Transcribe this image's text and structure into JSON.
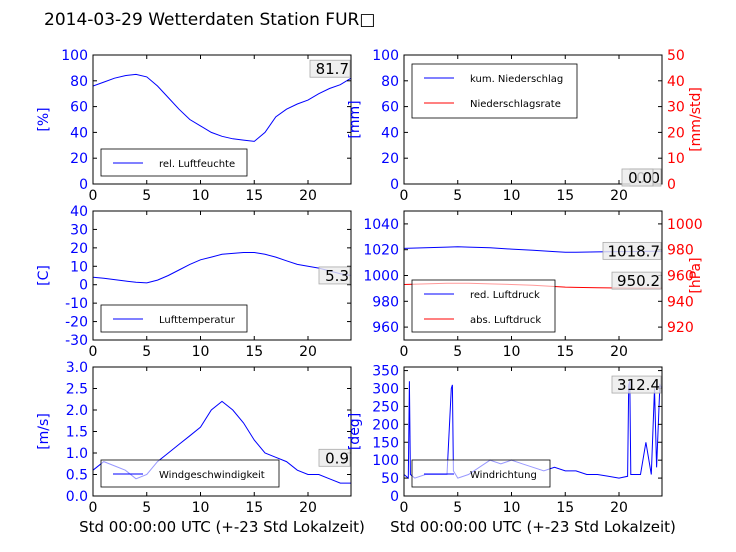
{
  "title": "2014-03-29 Wetterdaten Station FUR□",
  "common_xlabel": "Std 00:00:00 UTC (+-23 Std Lokalzeit)",
  "colors": {
    "blue": "#0000ff",
    "red": "#ff0000",
    "light_blue": "#8888ff",
    "black": "#000000"
  },
  "chart_data": [
    {
      "type": "line",
      "ylabel": "[%]",
      "xlim": [
        0,
        24
      ],
      "ylim": [
        0,
        100
      ],
      "xticks": [
        0,
        5,
        10,
        15,
        20
      ],
      "yticks": [
        0,
        20,
        40,
        60,
        80,
        100
      ],
      "annotation": "81.7",
      "legend_position": "lower-left",
      "series": [
        {
          "name": "rel. Luftfeuchte",
          "color": "#0000ff",
          "x": [
            0,
            1,
            2,
            3,
            4,
            5,
            6,
            7,
            8,
            9,
            10,
            11,
            12,
            13,
            14,
            15,
            16,
            17,
            18,
            19,
            20,
            21,
            22,
            23,
            24
          ],
          "y": [
            76,
            79,
            82,
            84,
            85,
            83,
            76,
            67,
            58,
            50,
            45,
            40,
            37,
            35,
            34,
            33,
            40,
            52,
            58,
            62,
            65,
            70,
            74,
            77,
            82
          ]
        }
      ]
    },
    {
      "type": "line",
      "ylabel": "[mm]",
      "ylabel_right": "[mm/std]",
      "xlim": [
        0,
        24
      ],
      "ylim": [
        0,
        100
      ],
      "ylim_right": [
        0,
        50
      ],
      "xticks": [
        0,
        5,
        10,
        15,
        20
      ],
      "yticks": [
        0,
        20,
        40,
        60,
        80,
        100
      ],
      "yticks_right": [
        0,
        10,
        20,
        30,
        40,
        50
      ],
      "annotation": "0.0",
      "annotation2": "0.0",
      "legend_position": "upper-left",
      "series": [
        {
          "name": "kum. Niederschlag",
          "color": "#0000ff",
          "axis": "left",
          "x": [
            0,
            24
          ],
          "y": [
            0,
            0
          ]
        },
        {
          "name": "Niederschlagsrate",
          "color": "#ff0000",
          "axis": "right",
          "x": [
            0,
            24
          ],
          "y": [
            0,
            0
          ]
        }
      ]
    },
    {
      "type": "line",
      "ylabel": "[C]",
      "xlim": [
        0,
        24
      ],
      "ylim": [
        -30,
        40
      ],
      "xticks": [
        0,
        5,
        10,
        15,
        20
      ],
      "yticks": [
        -30,
        -20,
        -10,
        0,
        10,
        20,
        30,
        40
      ],
      "annotation": "5.3",
      "legend_position": "lower-left",
      "series": [
        {
          "name": "Lufttemperatur",
          "color": "#0000ff",
          "x": [
            0,
            1,
            2,
            3,
            4,
            5,
            6,
            7,
            8,
            9,
            10,
            11,
            12,
            13,
            14,
            15,
            16,
            17,
            18,
            19,
            20,
            21,
            22,
            23,
            24
          ],
          "y": [
            4,
            3.5,
            2.8,
            2,
            1.3,
            1,
            2.5,
            5,
            8,
            11,
            13.5,
            15,
            16.5,
            17,
            17.5,
            17.5,
            16.5,
            15,
            13,
            11,
            10,
            9,
            7.5,
            6,
            5
          ]
        }
      ]
    },
    {
      "type": "line",
      "ylabel_right": "[hPa]",
      "xlim": [
        0,
        24
      ],
      "ylim": [
        950,
        1050
      ],
      "ylim_right": [
        910,
        1010
      ],
      "xticks": [
        0,
        5,
        10,
        15,
        20
      ],
      "yticks": [
        960,
        980,
        1000,
        1020,
        1040
      ],
      "yticks_right": [
        920,
        940,
        960,
        980,
        1000
      ],
      "annotation": "1018.7",
      "annotation2": "950.2",
      "legend_position": "lower-left",
      "series": [
        {
          "name": "red. Luftdruck",
          "color": "#0000ff",
          "axis": "left",
          "x": [
            0,
            2,
            4,
            5,
            6,
            8,
            10,
            12,
            14,
            15,
            16,
            18,
            20,
            22,
            24
          ],
          "y": [
            1021,
            1021.5,
            1022,
            1022.3,
            1022,
            1021.5,
            1020.5,
            1019.5,
            1018.5,
            1018,
            1018,
            1018.3,
            1018.5,
            1018.7,
            1018.8
          ]
        },
        {
          "name": "abs. Luftdruck",
          "color": "#ff0000",
          "axis": "right",
          "x": [
            0,
            2,
            4,
            5,
            6,
            8,
            10,
            12,
            14,
            15,
            16,
            18,
            20,
            22,
            24
          ],
          "y": [
            953,
            953.5,
            954,
            954,
            954,
            953.5,
            953,
            952.5,
            951.5,
            951,
            950.8,
            950.5,
            950.3,
            950.2,
            950.2
          ]
        }
      ]
    },
    {
      "type": "line",
      "ylabel": "[m/s]",
      "xlim": [
        0,
        24
      ],
      "ylim": [
        0,
        3
      ],
      "xticks": [
        0,
        5,
        10,
        15,
        20
      ],
      "yticks": [
        0.0,
        0.5,
        1.0,
        1.5,
        2.0,
        2.5,
        3.0
      ],
      "ytick_labels": [
        "0.0",
        "0.5",
        "1.0",
        "1.5",
        "2.0",
        "2.5",
        "3.0"
      ],
      "annotation": "0.9",
      "legend_position": "lower-left",
      "series": [
        {
          "name": "Windgeschwindigkeit",
          "color": "#0000ff",
          "x": [
            0,
            1,
            2,
            3,
            4,
            5,
            6,
            7,
            8,
            9,
            10,
            11,
            12,
            13,
            14,
            15,
            16,
            17,
            18,
            19,
            20,
            21,
            22,
            23,
            24
          ],
          "y": [
            0.6,
            0.8,
            0.7,
            0.6,
            0.4,
            0.5,
            0.8,
            1.0,
            1.2,
            1.4,
            1.6,
            2.0,
            2.2,
            2.0,
            1.7,
            1.3,
            1.0,
            0.9,
            0.8,
            0.6,
            0.5,
            0.5,
            0.4,
            0.3,
            0.3
          ]
        }
      ]
    },
    {
      "type": "line",
      "ylabel": "[deg]",
      "xlim": [
        0,
        24
      ],
      "ylim": [
        0,
        360
      ],
      "xticks": [
        0,
        5,
        10,
        15,
        20
      ],
      "yticks": [
        0,
        50,
        100,
        150,
        200,
        250,
        300,
        350
      ],
      "annotation": "312.4",
      "legend_position": "lower-left",
      "series": [
        {
          "name": "Windrichtung",
          "color": "#0000ff",
          "x": [
            0,
            0.4,
            0.5,
            0.6,
            1,
            2,
            3,
            4,
            4.4,
            4.5,
            4.6,
            5,
            6,
            7,
            8,
            9,
            10,
            11,
            12,
            13,
            14,
            15,
            16,
            17,
            18,
            19,
            20,
            20.8,
            20.9,
            21,
            21.1,
            22,
            22.5,
            23,
            23.3,
            23.5,
            23.8,
            24
          ],
          "y": [
            60,
            50,
            320,
            60,
            50,
            60,
            60,
            60,
            300,
            310,
            70,
            50,
            60,
            80,
            100,
            90,
            100,
            90,
            80,
            70,
            80,
            70,
            70,
            60,
            60,
            55,
            50,
            55,
            310,
            320,
            60,
            60,
            150,
            60,
            300,
            80,
            310,
            300
          ]
        }
      ]
    }
  ]
}
